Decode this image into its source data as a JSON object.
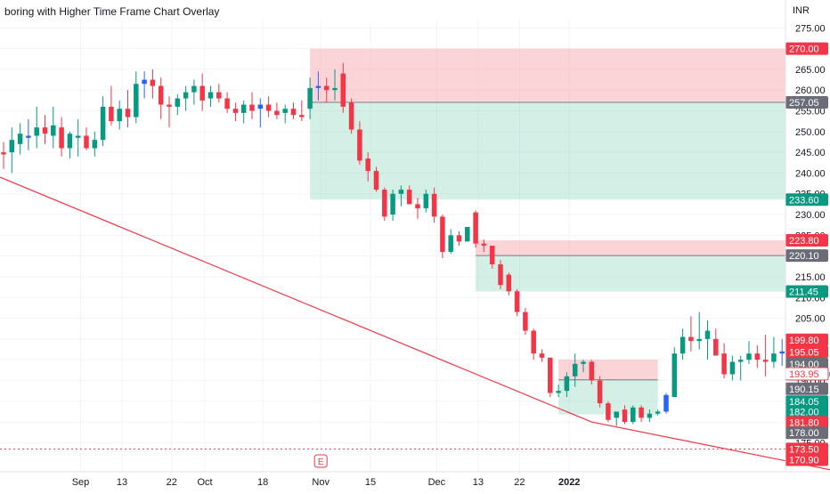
{
  "chart_data": {
    "type": "candlestick",
    "title": "boring with Higher Time Frame Chart Overlay",
    "currency": "INR",
    "ylim": [
      168,
      277
    ],
    "y_ticks": [
      275,
      270,
      265,
      260,
      255,
      250,
      245,
      240,
      235,
      230,
      225,
      220,
      215,
      210,
      205,
      200,
      195,
      190,
      185,
      180,
      175
    ],
    "x_ticks": [
      {
        "label": "Sep",
        "bar": 5
      },
      {
        "label": "13",
        "bar": 10
      },
      {
        "label": "22",
        "bar": 16
      },
      {
        "label": "Oct",
        "bar": 20
      },
      {
        "label": "18",
        "bar": 27
      },
      {
        "label": "Nov",
        "bar": 34
      },
      {
        "label": "15",
        "bar": 40
      },
      {
        "label": "Dec",
        "bar": 48
      },
      {
        "label": "13",
        "bar": 53
      },
      {
        "label": "22",
        "bar": 58
      },
      {
        "label": "2022",
        "bar": 64
      }
    ],
    "candles": [
      {
        "o": 245.0,
        "h": 247.5,
        "l": 241.0,
        "c": 244.5
      },
      {
        "o": 245.0,
        "h": 251.0,
        "l": 240.0,
        "c": 248.0
      },
      {
        "o": 247.0,
        "h": 252.0,
        "l": 244.5,
        "c": 249.5
      },
      {
        "o": 248.5,
        "h": 253.0,
        "l": 245.5,
        "c": 249.0
      },
      {
        "o": 249.0,
        "h": 256.0,
        "l": 246.0,
        "c": 251.0
      },
      {
        "o": 251.0,
        "h": 254.0,
        "l": 247.0,
        "c": 249.5
      },
      {
        "o": 249.0,
        "h": 256.0,
        "l": 246.0,
        "c": 251.5
      },
      {
        "o": 251.0,
        "h": 253.5,
        "l": 244.0,
        "c": 246.0
      },
      {
        "o": 246.0,
        "h": 250.0,
        "l": 243.5,
        "c": 249.5
      },
      {
        "o": 248.5,
        "h": 253.0,
        "l": 244.0,
        "c": 249.0
      },
      {
        "o": 249.0,
        "h": 251.0,
        "l": 245.5,
        "c": 246.0
      },
      {
        "o": 246.0,
        "h": 250.0,
        "l": 244.0,
        "c": 248.0
      },
      {
        "o": 248.0,
        "h": 258.5,
        "l": 246.5,
        "c": 256.0
      },
      {
        "o": 256.0,
        "h": 261.0,
        "l": 251.5,
        "c": 252.5
      },
      {
        "o": 252.5,
        "h": 257.5,
        "l": 250.5,
        "c": 255.5
      },
      {
        "o": 255.5,
        "h": 260.0,
        "l": 251.0,
        "c": 253.5
      },
      {
        "o": 253.5,
        "h": 264.5,
        "l": 252.0,
        "c": 261.5
      },
      {
        "o": 261.5,
        "h": 264.5,
        "l": 258.0,
        "c": 262.5
      },
      {
        "o": 262.5,
        "h": 265.0,
        "l": 258.0,
        "c": 261.0
      },
      {
        "o": 261.0,
        "h": 263.0,
        "l": 253.0,
        "c": 256.5
      },
      {
        "o": 256.5,
        "h": 258.5,
        "l": 251.0,
        "c": 256.0
      },
      {
        "o": 256.0,
        "h": 259.0,
        "l": 254.0,
        "c": 258.0
      },
      {
        "o": 258.0,
        "h": 261.0,
        "l": 255.0,
        "c": 259.5
      },
      {
        "o": 259.5,
        "h": 262.5,
        "l": 256.5,
        "c": 261.0
      },
      {
        "o": 261.0,
        "h": 264.0,
        "l": 255.0,
        "c": 257.5
      },
      {
        "o": 258.0,
        "h": 261.0,
        "l": 256.0,
        "c": 259.5
      },
      {
        "o": 259.5,
        "h": 261.5,
        "l": 257.0,
        "c": 258.0
      },
      {
        "o": 258.0,
        "h": 259.5,
        "l": 254.5,
        "c": 255.5
      },
      {
        "o": 255.5,
        "h": 257.0,
        "l": 252.5,
        "c": 254.5
      },
      {
        "o": 254.5,
        "h": 257.5,
        "l": 252.0,
        "c": 256.5
      },
      {
        "o": 256.5,
        "h": 259.5,
        "l": 253.0,
        "c": 255.0
      },
      {
        "o": 255.5,
        "h": 258.0,
        "l": 251.0,
        "c": 256.5
      },
      {
        "o": 256.5,
        "h": 258.5,
        "l": 253.5,
        "c": 255.0
      },
      {
        "o": 255.0,
        "h": 257.0,
        "l": 253.0,
        "c": 254.0
      },
      {
        "o": 254.5,
        "h": 256.5,
        "l": 252.0,
        "c": 255.5
      },
      {
        "o": 255.5,
        "h": 257.0,
        "l": 253.0,
        "c": 254.0
      },
      {
        "o": 254.0,
        "h": 257.5,
        "l": 252.5,
        "c": 253.5
      }
    ],
    "candles_part2": [
      {
        "o": 255.5,
        "h": 263.0,
        "l": 253.0,
        "c": 260.5
      },
      {
        "o": 260.5,
        "h": 264.5,
        "l": 257.5,
        "c": 261.0
      },
      {
        "o": 261.0,
        "h": 263.0,
        "l": 257.0,
        "c": 260.0
      },
      {
        "o": 260.0,
        "h": 265.0,
        "l": 257.5,
        "c": 260.5
      },
      {
        "o": 264.0,
        "h": 266.5,
        "l": 254.5,
        "c": 256.0
      },
      {
        "o": 257.0,
        "h": 258.0,
        "l": 249.5,
        "c": 250.5
      },
      {
        "o": 250.5,
        "h": 252.5,
        "l": 242.0,
        "c": 243.0
      },
      {
        "o": 243.5,
        "h": 245.0,
        "l": 238.0,
        "c": 240.5
      },
      {
        "o": 240.5,
        "h": 241.5,
        "l": 235.5,
        "c": 236.0
      },
      {
        "o": 236.0,
        "h": 236.5,
        "l": 228.5,
        "c": 229.5
      },
      {
        "o": 230.0,
        "h": 236.0,
        "l": 228.5,
        "c": 235.0
      },
      {
        "o": 235.0,
        "h": 237.0,
        "l": 232.0,
        "c": 236.0
      },
      {
        "o": 236.0,
        "h": 237.0,
        "l": 232.5,
        "c": 232.5
      },
      {
        "o": 232.5,
        "h": 234.0,
        "l": 229.0,
        "c": 231.5
      },
      {
        "o": 231.5,
        "h": 236.0,
        "l": 230.5,
        "c": 235.0
      },
      {
        "o": 235.0,
        "h": 236.5,
        "l": 228.0,
        "c": 229.5
      },
      {
        "o": 229.5,
        "h": 230.0,
        "l": 219.5,
        "c": 221.0
      },
      {
        "o": 221.0,
        "h": 226.5,
        "l": 220.5,
        "c": 225.0
      },
      {
        "o": 225.0,
        "h": 226.0,
        "l": 222.5,
        "c": 223.5
      },
      {
        "o": 223.5,
        "h": 226.5,
        "l": 224.0,
        "c": 227.0
      },
      {
        "o": 230.5,
        "h": 231.0,
        "l": 222.0,
        "c": 223.0
      },
      {
        "o": 223.0,
        "h": 224.0,
        "l": 221.0,
        "c": 222.5
      },
      {
        "o": 222.5,
        "h": 222.5,
        "l": 217.0,
        "c": 218.0
      },
      {
        "o": 218.0,
        "h": 219.0,
        "l": 212.0,
        "c": 213.0
      },
      {
        "o": 215.5,
        "h": 216.0,
        "l": 210.5,
        "c": 211.5
      },
      {
        "o": 211.5,
        "h": 212.0,
        "l": 205.5,
        "c": 206.5
      },
      {
        "o": 206.5,
        "h": 207.5,
        "l": 201.0,
        "c": 202.0
      },
      {
        "o": 202.0,
        "h": 202.5,
        "l": 195.0,
        "c": 196.5
      },
      {
        "o": 196.5,
        "h": 197.5,
        "l": 194.5,
        "c": 195.5
      },
      {
        "o": 195.5,
        "h": 195.5,
        "l": 186.0,
        "c": 187.0
      },
      {
        "o": 187.0,
        "h": 189.0,
        "l": 186.0,
        "c": 187.5
      },
      {
        "o": 187.5,
        "h": 192.0,
        "l": 186.0,
        "c": 191.0
      },
      {
        "o": 191.0,
        "h": 196.5,
        "l": 188.5,
        "c": 194.0
      },
      {
        "o": 194.0,
        "h": 195.0,
        "l": 192.0,
        "c": 194.5
      },
      {
        "o": 194.5,
        "h": 195.0,
        "l": 189.0,
        "c": 190.0
      },
      {
        "o": 190.0,
        "h": 191.0,
        "l": 183.5,
        "c": 184.5
      },
      {
        "o": 184.5,
        "h": 185.0,
        "l": 180.0,
        "c": 180.5
      },
      {
        "o": 181.0,
        "h": 182.0,
        "l": 179.0,
        "c": 182.5
      },
      {
        "o": 183.0,
        "h": 184.0,
        "l": 179.5,
        "c": 180.0
      },
      {
        "o": 180.0,
        "h": 184.0,
        "l": 179.5,
        "c": 183.5
      },
      {
        "o": 183.5,
        "h": 184.0,
        "l": 180.0,
        "c": 181.0
      },
      {
        "o": 181.0,
        "h": 183.0,
        "l": 180.0,
        "c": 182.0
      },
      {
        "o": 182.0,
        "h": 183.0,
        "l": 181.5,
        "c": 182.5
      },
      {
        "o": 182.5,
        "h": 187.0,
        "l": 182.0,
        "c": 186.5
      },
      {
        "o": 186.0,
        "h": 198.0,
        "l": 186.0,
        "c": 196.5
      },
      {
        "o": 196.5,
        "h": 202.5,
        "l": 195.0,
        "c": 200.5
      },
      {
        "o": 200.5,
        "h": 205.5,
        "l": 197.0,
        "c": 199.5
      },
      {
        "o": 199.5,
        "h": 206.5,
        "l": 197.5,
        "c": 200.0
      },
      {
        "o": 200.0,
        "h": 204.5,
        "l": 195.0,
        "c": 202.0
      },
      {
        "o": 200.0,
        "h": 202.5,
        "l": 196.0,
        "c": 196.0
      },
      {
        "o": 196.5,
        "h": 199.0,
        "l": 190.5,
        "c": 191.5
      },
      {
        "o": 191.5,
        "h": 196.0,
        "l": 190.0,
        "c": 194.5
      },
      {
        "o": 194.5,
        "h": 196.0,
        "l": 190.0,
        "c": 195.0
      },
      {
        "o": 195.0,
        "h": 199.5,
        "l": 194.0,
        "c": 196.5
      },
      {
        "o": 196.5,
        "h": 198.5,
        "l": 193.0,
        "c": 195.0
      },
      {
        "o": 195.0,
        "h": 201.0,
        "l": 191.0,
        "c": 194.5
      },
      {
        "o": 194.5,
        "h": 200.5,
        "l": 193.0,
        "c": 196.5
      },
      {
        "o": 196.5,
        "h": 200.0,
        "l": 193.5,
        "c": 197.0
      },
      {
        "o": 197.0,
        "h": 198.5,
        "l": 193.0,
        "c": 195.0
      },
      {
        "o": 195.0,
        "h": 199.0,
        "l": 194.0,
        "c": 194.5
      },
      {
        "o": 194.5,
        "h": 197.5,
        "l": 193.5,
        "c": 196.0
      },
      {
        "o": 196.0,
        "h": 199.0,
        "l": 192.5,
        "c": 195.0
      },
      {
        "o": 195.0,
        "h": 196.5,
        "l": 190.5,
        "c": 191.0
      },
      {
        "o": 191.0,
        "h": 194.0,
        "l": 190.0,
        "c": 192.0
      },
      {
        "o": 192.0,
        "h": 194.5,
        "l": 190.5,
        "c": 193.0
      },
      {
        "o": 193.0,
        "h": 194.0,
        "l": 191.0,
        "c": 193.95
      }
    ],
    "zones": [
      {
        "name": "upper-supply",
        "start_bar": 37,
        "end_bar": "end",
        "top": 270.0,
        "bottom": 257.05,
        "color": "#f7b8bd",
        "opacity": 0.6
      },
      {
        "name": "upper-demand",
        "start_bar": 37,
        "end_bar": "end",
        "top": 257.05,
        "bottom": 233.6,
        "color": "#9fdcc8",
        "opacity": 0.45
      },
      {
        "name": "mid-supply",
        "start_bar": 57,
        "end_bar": "end",
        "top": 223.8,
        "bottom": 220.1,
        "color": "#f7b8bd",
        "opacity": 0.6
      },
      {
        "name": "mid-demand",
        "start_bar": 57,
        "end_bar": "end",
        "top": 220.1,
        "bottom": 211.45,
        "color": "#9fdcc8",
        "opacity": 0.45
      },
      {
        "name": "low-supply",
        "start_bar": 67,
        "end_bar": 79,
        "top": 195.05,
        "bottom": 190.15,
        "color": "#f7b8bd",
        "opacity": 0.6
      },
      {
        "name": "low-demand",
        "start_bar": 67,
        "end_bar": 79,
        "top": 190.15,
        "bottom": 181.8,
        "color": "#9fdcc8",
        "opacity": 0.45
      }
    ],
    "trendline": [
      {
        "bar": -1,
        "price": 239.0
      },
      {
        "bar": 71,
        "price": 180.0
      },
      {
        "bar": 101,
        "price": 168.0
      }
    ],
    "price_labels": [
      {
        "text": "270.00",
        "price": 270.0,
        "bg": "#f23645",
        "fg": "#ffffff"
      },
      {
        "text": "257.05",
        "price": 257.05,
        "bg": "#6a6d78",
        "fg": "#ffffff"
      },
      {
        "text": "233.60",
        "price": 233.6,
        "bg": "#089981",
        "fg": "#ffffff"
      },
      {
        "text": "223.80",
        "price": 223.8,
        "bg": "#f23645",
        "fg": "#ffffff"
      },
      {
        "text": "220.10",
        "price": 220.1,
        "bg": "#6a6d78",
        "fg": "#ffffff"
      },
      {
        "text": "211.45",
        "price": 211.45,
        "bg": "#089981",
        "fg": "#ffffff"
      },
      {
        "text": "199.80",
        "price": 199.8,
        "bg": "#f23645",
        "fg": "#ffffff"
      },
      {
        "text": "195.05",
        "price": 196.9,
        "bg": "#f23645",
        "fg": "#ffffff"
      },
      {
        "text": "194.00",
        "price": 194.0,
        "bg": "#6a6d78",
        "fg": "#ffffff"
      },
      {
        "text": "193.95",
        "price": 191.6,
        "bg": "#ffffff",
        "fg": "#f23645",
        "border": "#f23645"
      },
      {
        "text": "190.15",
        "price": 188.0,
        "bg": "#6a6d78",
        "fg": "#ffffff"
      },
      {
        "text": "184.05",
        "price": 184.9,
        "bg": "#089981",
        "fg": "#ffffff"
      },
      {
        "text": "182.00",
        "price": 182.5,
        "bg": "#089981",
        "fg": "#ffffff"
      },
      {
        "text": "181.80",
        "price": 179.9,
        "bg": "#f23645",
        "fg": "#ffffff"
      },
      {
        "text": "178.00",
        "price": 177.4,
        "bg": "#6a6d78",
        "fg": "#ffffff"
      },
      {
        "text": "173.50",
        "price": 173.5,
        "bg": "#f23645",
        "fg": "#ffffff"
      },
      {
        "text": "170.90",
        "price": 170.9,
        "bg": "#f23645",
        "fg": "#ffffff"
      }
    ],
    "hidden_tick": {
      "text": "180.00",
      "price": 180.0
    },
    "dotted_line": {
      "price": 173.5,
      "color": "#f23645"
    },
    "event_marker": {
      "text": "E",
      "bar": 34
    },
    "colors": {
      "up": "#089981",
      "down": "#f23645",
      "htf_up": "#2962ff",
      "grid": "#f0f3fa",
      "axis_text": "#131722",
      "trendline": "#f23645"
    }
  }
}
